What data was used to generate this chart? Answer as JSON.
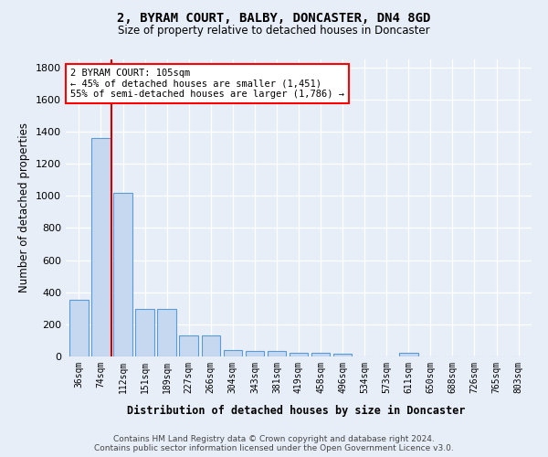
{
  "title": "2, BYRAM COURT, BALBY, DONCASTER, DN4 8GD",
  "subtitle": "Size of property relative to detached houses in Doncaster",
  "xlabel": "Distribution of detached houses by size in Doncaster",
  "ylabel": "Number of detached properties",
  "footer_line1": "Contains HM Land Registry data © Crown copyright and database right 2024.",
  "footer_line2": "Contains public sector information licensed under the Open Government Licence v3.0.",
  "categories": [
    "36sqm",
    "74sqm",
    "112sqm",
    "151sqm",
    "189sqm",
    "227sqm",
    "266sqm",
    "304sqm",
    "343sqm",
    "381sqm",
    "419sqm",
    "458sqm",
    "496sqm",
    "534sqm",
    "573sqm",
    "611sqm",
    "650sqm",
    "688sqm",
    "726sqm",
    "765sqm",
    "803sqm"
  ],
  "values": [
    355,
    1360,
    1020,
    295,
    295,
    130,
    130,
    40,
    35,
    35,
    20,
    20,
    15,
    0,
    0,
    20,
    0,
    0,
    0,
    0,
    0
  ],
  "bar_color": "#c5d8f0",
  "bar_edge_color": "#5b9bd5",
  "property_line_x": 1.49,
  "property_line_color": "#cc0000",
  "annotation_text_line1": "2 BYRAM COURT: 105sqm",
  "annotation_text_line2": "← 45% of detached houses are smaller (1,451)",
  "annotation_text_line3": "55% of semi-detached houses are larger (1,786) →",
  "ylim": [
    0,
    1850
  ],
  "yticks": [
    0,
    200,
    400,
    600,
    800,
    1000,
    1200,
    1400,
    1600,
    1800
  ],
  "background_color": "#e8eef8",
  "plot_bg_color": "#e8eef8"
}
